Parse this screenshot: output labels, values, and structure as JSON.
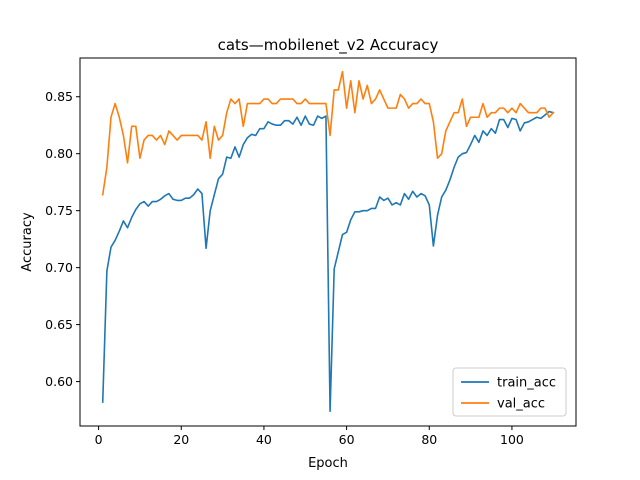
{
  "chart_data": {
    "type": "line",
    "title": "cats—mobilenet_v2 Accuracy",
    "xlabel": "Epoch",
    "ylabel": "Accuracy",
    "xlim": [
      -4.5,
      115.5
    ],
    "ylim": [
      0.561,
      0.884
    ],
    "xticks": [
      0,
      20,
      40,
      60,
      80,
      100
    ],
    "yticks": [
      0.6,
      0.65,
      0.7,
      0.75,
      0.8,
      0.85
    ],
    "ytick_labels": [
      "0.60",
      "0.65",
      "0.70",
      "0.75",
      "0.80",
      "0.85"
    ],
    "grid": false,
    "legend_position": "lower-right",
    "series": [
      {
        "name": "train_acc",
        "color": "#1f77b4",
        "x": [
          1,
          2,
          3,
          4,
          5,
          6,
          7,
          8,
          9,
          10,
          11,
          12,
          13,
          14,
          15,
          16,
          17,
          18,
          19,
          20,
          21,
          22,
          23,
          24,
          25,
          26,
          27,
          28,
          29,
          30,
          31,
          32,
          33,
          34,
          35,
          36,
          37,
          38,
          39,
          40,
          41,
          42,
          43,
          44,
          45,
          46,
          47,
          48,
          49,
          50,
          51,
          52,
          53,
          54,
          55,
          56,
          57,
          58,
          59,
          60,
          61,
          62,
          63,
          64,
          65,
          66,
          67,
          68,
          69,
          70,
          71,
          72,
          73,
          74,
          75,
          76,
          77,
          78,
          79,
          80,
          81,
          82,
          83,
          84,
          85,
          86,
          87,
          88,
          89,
          90,
          91,
          92,
          93,
          94,
          95,
          96,
          97,
          98,
          99,
          100,
          101,
          102,
          103,
          104,
          105,
          106,
          107,
          108,
          109,
          110
        ],
        "values": [
          0.582,
          0.697,
          0.718,
          0.724,
          0.732,
          0.741,
          0.735,
          0.744,
          0.751,
          0.756,
          0.758,
          0.754,
          0.758,
          0.758,
          0.76,
          0.763,
          0.765,
          0.76,
          0.759,
          0.759,
          0.761,
          0.761,
          0.764,
          0.769,
          0.765,
          0.717,
          0.75,
          0.764,
          0.778,
          0.782,
          0.797,
          0.796,
          0.806,
          0.797,
          0.808,
          0.814,
          0.817,
          0.816,
          0.822,
          0.822,
          0.828,
          0.826,
          0.825,
          0.825,
          0.829,
          0.829,
          0.826,
          0.832,
          0.825,
          0.833,
          0.826,
          0.825,
          0.833,
          0.831,
          0.833,
          0.574,
          0.699,
          0.714,
          0.729,
          0.731,
          0.742,
          0.749,
          0.749,
          0.75,
          0.75,
          0.752,
          0.752,
          0.762,
          0.759,
          0.761,
          0.755,
          0.757,
          0.755,
          0.765,
          0.76,
          0.767,
          0.762,
          0.765,
          0.763,
          0.755,
          0.719,
          0.746,
          0.762,
          0.768,
          0.777,
          0.788,
          0.797,
          0.8,
          0.801,
          0.808,
          0.816,
          0.81,
          0.82,
          0.816,
          0.822,
          0.818,
          0.83,
          0.83,
          0.823,
          0.831,
          0.83,
          0.82,
          0.827,
          0.828,
          0.83,
          0.832,
          0.831,
          0.834,
          0.837,
          0.836
        ]
      },
      {
        "name": "val_acc",
        "color": "#ff7f0e",
        "x": [
          1,
          2,
          3,
          4,
          5,
          6,
          7,
          8,
          9,
          10,
          11,
          12,
          13,
          14,
          15,
          16,
          17,
          18,
          19,
          20,
          21,
          22,
          23,
          24,
          25,
          26,
          27,
          28,
          29,
          30,
          31,
          32,
          33,
          34,
          35,
          36,
          37,
          38,
          39,
          40,
          41,
          42,
          43,
          44,
          45,
          46,
          47,
          48,
          49,
          50,
          51,
          52,
          53,
          54,
          55,
          56,
          57,
          58,
          59,
          60,
          61,
          62,
          63,
          64,
          65,
          66,
          67,
          68,
          69,
          70,
          71,
          72,
          73,
          74,
          75,
          76,
          77,
          78,
          79,
          80,
          81,
          82,
          83,
          84,
          85,
          86,
          87,
          88,
          89,
          90,
          91,
          92,
          93,
          94,
          95,
          96,
          97,
          98,
          99,
          100,
          101,
          102,
          103,
          104,
          105,
          106,
          107,
          108,
          109,
          110
        ],
        "values": [
          0.764,
          0.788,
          0.832,
          0.844,
          0.832,
          0.816,
          0.792,
          0.824,
          0.824,
          0.796,
          0.812,
          0.816,
          0.816,
          0.812,
          0.816,
          0.808,
          0.82,
          0.816,
          0.812,
          0.816,
          0.816,
          0.816,
          0.816,
          0.816,
          0.812,
          0.828,
          0.796,
          0.824,
          0.812,
          0.816,
          0.836,
          0.848,
          0.844,
          0.848,
          0.824,
          0.844,
          0.844,
          0.844,
          0.844,
          0.848,
          0.848,
          0.844,
          0.844,
          0.848,
          0.848,
          0.848,
          0.848,
          0.844,
          0.844,
          0.848,
          0.844,
          0.844,
          0.844,
          0.844,
          0.844,
          0.816,
          0.856,
          0.856,
          0.872,
          0.84,
          0.864,
          0.836,
          0.864,
          0.848,
          0.86,
          0.844,
          0.848,
          0.856,
          0.848,
          0.84,
          0.84,
          0.84,
          0.852,
          0.848,
          0.84,
          0.844,
          0.844,
          0.848,
          0.844,
          0.844,
          0.828,
          0.796,
          0.8,
          0.82,
          0.828,
          0.836,
          0.836,
          0.848,
          0.824,
          0.832,
          0.832,
          0.832,
          0.844,
          0.832,
          0.836,
          0.836,
          0.84,
          0.84,
          0.836,
          0.84,
          0.836,
          0.844,
          0.84,
          0.836,
          0.836,
          0.836,
          0.84,
          0.84,
          0.832,
          0.836
        ]
      }
    ]
  }
}
